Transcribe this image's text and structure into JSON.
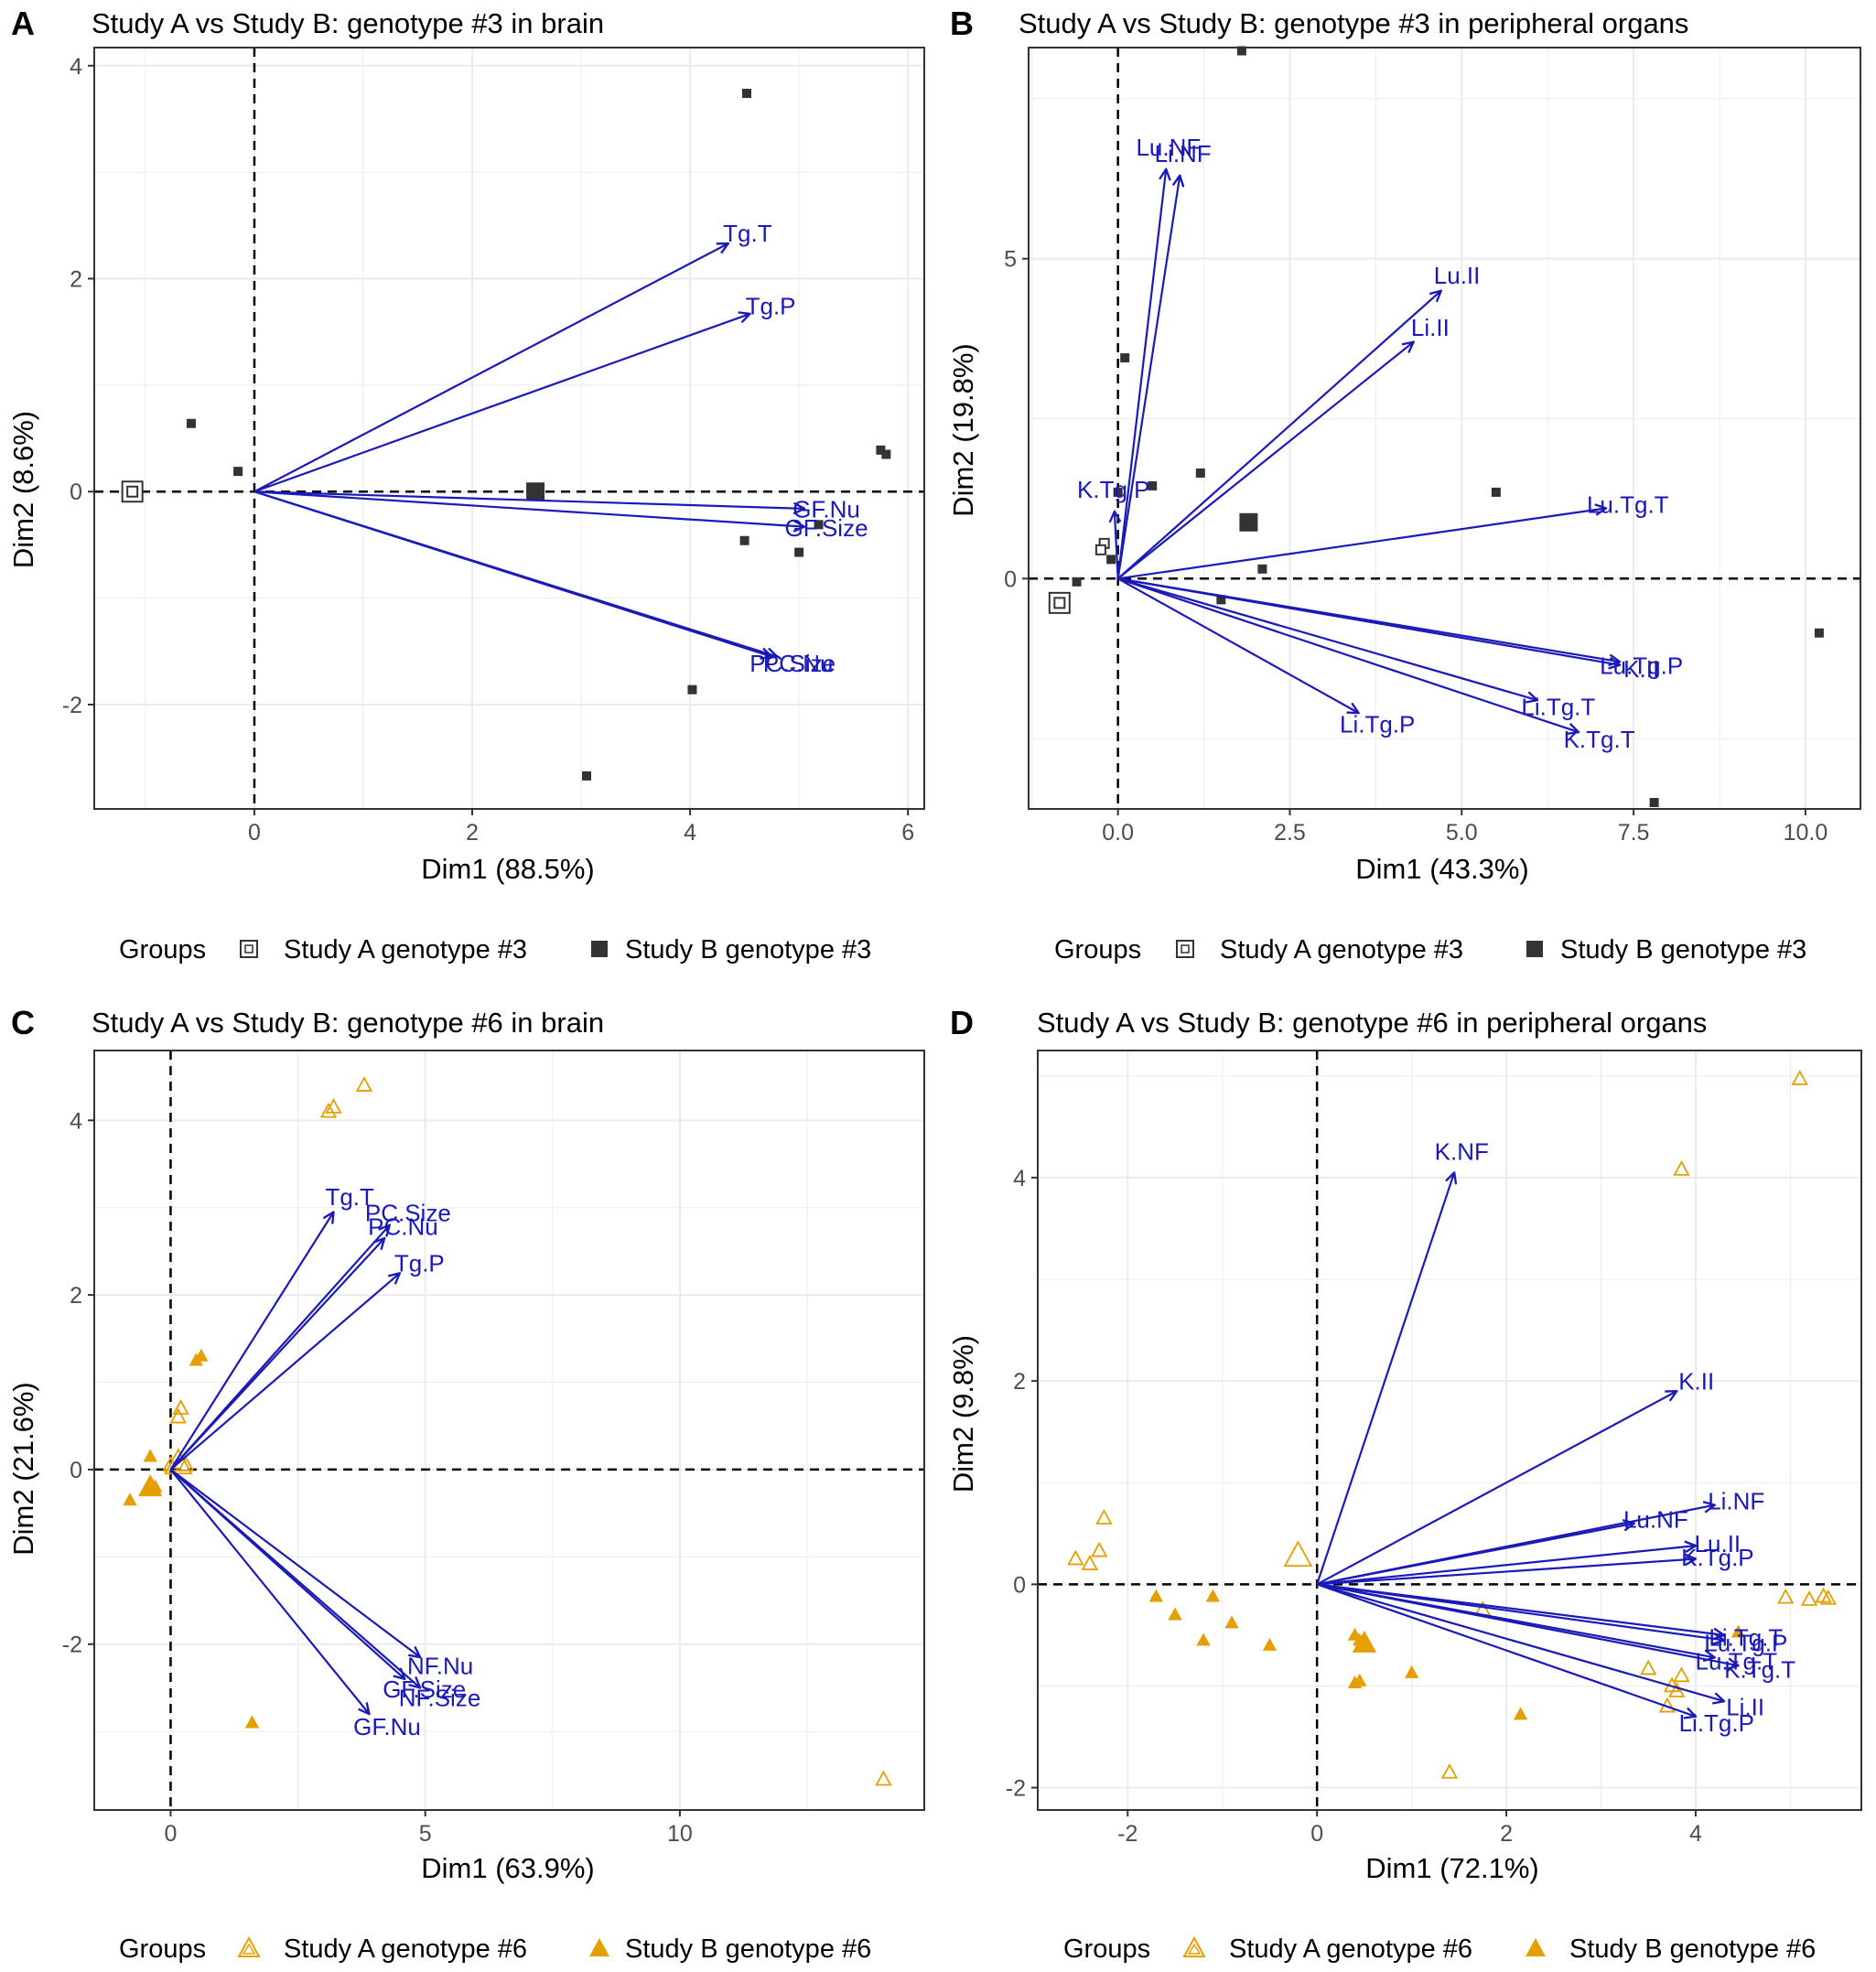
{
  "colors": {
    "arrow": "#1a1ab8",
    "gray_points": "#333333",
    "orange_points": "#e69f00",
    "grid": "#ebebeb",
    "axis": "#333333"
  },
  "chart_data": [
    {
      "panel": "A",
      "type": "scatter",
      "title": "Study A vs Study B: genotype #3 in brain",
      "xlabel": "Dim1 (88.5%)",
      "ylabel": "Dim2 (8.6%)",
      "xlim": [
        -1.47,
        6.15
      ],
      "ylim": [
        -2.98,
        4.17
      ],
      "xticks": [
        0,
        2,
        4,
        6
      ],
      "yticks": [
        -2,
        0,
        2,
        4
      ],
      "legend": {
        "title": "Groups",
        "entries": [
          "Study A genotype #3",
          "Study B genotype #3"
        ],
        "position": "bottom"
      },
      "series": [
        {
          "name": "Study A genotype #3",
          "marker": "open-square",
          "points": [],
          "centroid": [
            -1.12,
            0.0
          ]
        },
        {
          "name": "Study B genotype #3",
          "marker": "filled-square",
          "points": [
            [
              4.52,
              3.74
            ],
            [
              -0.58,
              0.64
            ],
            [
              -0.15,
              0.19
            ],
            [
              5.75,
              0.39
            ],
            [
              5.8,
              0.35
            ],
            [
              5.18,
              -0.31
            ],
            [
              4.5,
              -0.46
            ],
            [
              5.0,
              -0.57
            ],
            [
              4.02,
              -1.86
            ],
            [
              3.05,
              -2.67
            ]
          ],
          "centroid": [
            2.58,
            0.0
          ]
        }
      ],
      "vectors": [
        {
          "label": "Tg.T",
          "x": 4.35,
          "y": 2.33
        },
        {
          "label": "Tg.P",
          "x": 4.55,
          "y": 1.67
        },
        {
          "label": "GF.Nu",
          "x": 5.05,
          "y": -0.16
        },
        {
          "label": "GF.Size",
          "x": 5.05,
          "y": -0.33
        },
        {
          "label": "PC.Nu",
          "x": 4.8,
          "y": -1.55
        },
        {
          "label": "PC.Size",
          "x": 4.75,
          "y": -1.55
        }
      ]
    },
    {
      "panel": "B",
      "type": "scatter",
      "title": "Study A vs Study B: genotype #3 in peripheral organs",
      "xlabel": "Dim1 (43.3%)",
      "ylabel": "Dim2 (19.8%)",
      "xlim": [
        -1.3,
        10.8
      ],
      "ylim": [
        -3.6,
        8.3
      ],
      "xticks": [
        0.0,
        2.5,
        5.0,
        7.5,
        10.0
      ],
      "xticklabels": [
        "0.0",
        "2.5",
        "5.0",
        "7.5",
        "10.0"
      ],
      "yticks": [
        0,
        5
      ],
      "legend": {
        "title": "Groups",
        "entries": [
          "Study A genotype #3",
          "Study B genotype #3"
        ],
        "position": "bottom"
      },
      "series": [
        {
          "name": "Study A genotype #3",
          "marker": "open-square",
          "points": [
            [
              -0.2,
              0.55
            ],
            [
              -0.25,
              0.45
            ]
          ],
          "centroid": [
            -0.85,
            -0.38
          ]
        },
        {
          "name": "Study B genotype #3",
          "marker": "filled-square",
          "points": [
            [
              1.8,
              8.25
            ],
            [
              0.1,
              3.45
            ],
            [
              0.0,
              1.35
            ],
            [
              0.5,
              1.45
            ],
            [
              1.2,
              1.65
            ],
            [
              5.5,
              1.35
            ],
            [
              1.5,
              -0.33
            ],
            [
              2.1,
              0.15
            ],
            [
              -0.6,
              -0.05
            ],
            [
              7.8,
              -3.5
            ],
            [
              10.2,
              -0.85
            ],
            [
              -0.1,
              0.3
            ]
          ],
          "centroid": [
            1.9,
            0.88
          ]
        }
      ],
      "vectors": [
        {
          "label": "Lu.NF",
          "x": 0.7,
          "y": 6.4
        },
        {
          "label": "Li.NF",
          "x": 0.9,
          "y": 6.3
        },
        {
          "label": "Lu.II",
          "x": 4.7,
          "y": 4.5
        },
        {
          "label": "Li.II",
          "x": 4.3,
          "y": 3.7
        },
        {
          "label": "Lu.Tg.T",
          "x": 7.1,
          "y": 1.1
        },
        {
          "label": "K.Tg.P",
          "x": -0.05,
          "y": 1.05
        },
        {
          "label": "Lu.Tg.P",
          "x": 7.3,
          "y": -1.3
        },
        {
          "label": "K.II",
          "x": 7.3,
          "y": -1.35
        },
        {
          "label": "Li.Tg.T",
          "x": 6.1,
          "y": -1.9
        },
        {
          "label": "K.Tg.T",
          "x": 6.7,
          "y": -2.4
        },
        {
          "label": "Li.Tg.P",
          "x": 3.5,
          "y": -2.1
        }
      ]
    },
    {
      "panel": "C",
      "type": "scatter",
      "title": "Study A vs Study B: genotype #6 in brain",
      "xlabel": "Dim1 (63.9%)",
      "ylabel": "Dim2 (21.6%)",
      "xlim": [
        -1.5,
        14.8
      ],
      "ylim": [
        -3.9,
        4.8
      ],
      "xticks": [
        0,
        5,
        10
      ],
      "yticks": [
        -2,
        0,
        2,
        4
      ],
      "legend": {
        "title": "Groups",
        "entries": [
          "Study A genotype #6",
          "Study B genotype #6"
        ],
        "position": "bottom"
      },
      "series": [
        {
          "name": "Study A genotype #6",
          "marker": "open-triangle",
          "points": [
            [
              3.8,
              4.4
            ],
            [
              3.1,
              4.1
            ],
            [
              3.2,
              4.15
            ],
            [
              0.2,
              0.7
            ],
            [
              0.15,
              0.6
            ],
            [
              14.0,
              -3.55
            ],
            [
              0.3,
              0.05
            ],
            [
              0.0,
              0.05
            ]
          ],
          "centroid": [
            0.15,
            0.07
          ]
        },
        {
          "name": "Study B genotype #6",
          "marker": "filled-triangle",
          "points": [
            [
              0.6,
              1.3
            ],
            [
              0.5,
              1.25
            ],
            [
              -0.4,
              0.15
            ],
            [
              -0.8,
              -0.35
            ],
            [
              1.6,
              -2.9
            ],
            [
              -0.3,
              -0.2
            ]
          ],
          "centroid": [
            -0.4,
            -0.2
          ]
        }
      ],
      "vectors": [
        {
          "label": "Tg.T",
          "x": 3.2,
          "y": 2.95
        },
        {
          "label": "PC.Size",
          "x": 4.3,
          "y": 2.8
        },
        {
          "label": "PC.Nu",
          "x": 4.2,
          "y": 2.65
        },
        {
          "label": "Tg.P",
          "x": 4.5,
          "y": 2.25
        },
        {
          "label": "NF.Nu",
          "x": 4.9,
          "y": -2.15
        },
        {
          "label": "NF.Size",
          "x": 4.9,
          "y": -2.5
        },
        {
          "label": "GF.Size",
          "x": 4.6,
          "y": -2.4
        },
        {
          "label": "GF.Nu",
          "x": 3.9,
          "y": -2.8
        }
      ]
    },
    {
      "panel": "D",
      "type": "scatter",
      "title": "Study A vs Study B: genotype #6 in peripheral organs",
      "xlabel": "Dim1 (72.1%)",
      "ylabel": "Dim2 (9.8%)",
      "xlim": [
        -2.95,
        5.75
      ],
      "ylim": [
        -2.22,
        5.25
      ],
      "xticks": [
        -2,
        0,
        2,
        4
      ],
      "yticks": [
        -2,
        0,
        2,
        4
      ],
      "legend": {
        "title": "Groups",
        "entries": [
          "Study A genotype #6",
          "Study B genotype #6"
        ],
        "position": "bottom"
      },
      "series": [
        {
          "name": "Study A genotype #6",
          "marker": "open-triangle",
          "points": [
            [
              5.1,
              4.97
            ],
            [
              3.85,
              4.08
            ],
            [
              -2.25,
              0.65
            ],
            [
              -2.3,
              0.33
            ],
            [
              -2.55,
              0.25
            ],
            [
              -2.4,
              0.2
            ],
            [
              4.95,
              -0.13
            ],
            [
              5.2,
              -0.15
            ],
            [
              5.35,
              -0.12
            ],
            [
              5.4,
              -0.14
            ],
            [
              1.75,
              -0.25
            ],
            [
              3.5,
              -0.83
            ],
            [
              3.85,
              -0.9
            ],
            [
              3.8,
              -1.05
            ],
            [
              3.7,
              -1.2
            ],
            [
              1.4,
              -1.85
            ],
            [
              3.75,
              -1.0
            ]
          ],
          "centroid": [
            -0.2,
            0.28
          ]
        },
        {
          "name": "Study B genotype #6",
          "marker": "filled-triangle",
          "points": [
            [
              -1.7,
              -0.12
            ],
            [
              -1.5,
              -0.3
            ],
            [
              -1.2,
              -0.55
            ],
            [
              -1.1,
              -0.12
            ],
            [
              -0.9,
              -0.38
            ],
            [
              -0.5,
              -0.6
            ],
            [
              0.4,
              -0.5
            ],
            [
              0.45,
              -0.55
            ],
            [
              0.4,
              -0.97
            ],
            [
              0.45,
              -0.95
            ],
            [
              1.0,
              -0.87
            ],
            [
              2.15,
              -1.28
            ],
            [
              4.45,
              -0.47
            ]
          ],
          "centroid": [
            0.5,
            -0.58
          ]
        }
      ],
      "vectors": [
        {
          "label": "K.NF",
          "x": 1.45,
          "y": 4.05
        },
        {
          "label": "K.II",
          "x": 3.8,
          "y": 1.9
        },
        {
          "label": "Li.NF",
          "x": 4.2,
          "y": 0.78
        },
        {
          "label": "Lu.NF",
          "x": 3.35,
          "y": 0.6
        },
        {
          "label": "Lu.II",
          "x": 4.0,
          "y": 0.38
        },
        {
          "label": "K.Tg.P",
          "x": 4.0,
          "y": 0.25
        },
        {
          "label": "Lu.Tg.P",
          "x": 4.3,
          "y": -0.55
        },
        {
          "label": "Li.Tg.T",
          "x": 4.3,
          "y": -0.5
        },
        {
          "label": "K.Tg.T",
          "x": 4.45,
          "y": -0.8
        },
        {
          "label": "Lu.Tg.T",
          "x": 4.2,
          "y": -0.72
        },
        {
          "label": "Li.II",
          "x": 4.3,
          "y": -1.15
        },
        {
          "label": "Li.Tg.P",
          "x": 4.0,
          "y": -1.3
        }
      ]
    }
  ]
}
